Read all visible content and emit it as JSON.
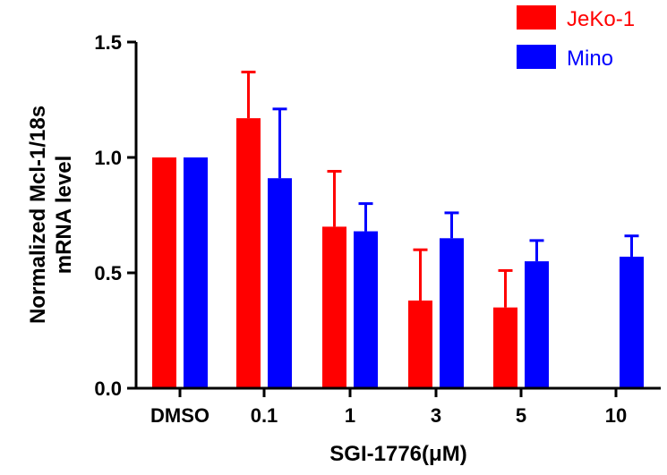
{
  "chart_data": {
    "type": "bar",
    "title": "",
    "xlabel": "SGI-1776(μM)",
    "ylabel_line1": "Normalized Mcl-1/18s",
    "ylabel_line2": "mRNA level",
    "ylim": [
      0,
      1.5
    ],
    "yticks": [
      "0.0",
      "0.5",
      "1.0",
      "1.5"
    ],
    "categories": [
      "DMSO",
      "0.1",
      "1",
      "3",
      "5",
      "10"
    ],
    "legend_position": "top-right",
    "grid": false,
    "series": [
      {
        "name": "JeKo-1",
        "color": "#ff0000",
        "values": [
          1.0,
          1.17,
          0.7,
          0.38,
          0.35,
          null
        ],
        "errors": [
          0,
          0.2,
          0.24,
          0.22,
          0.16,
          null
        ]
      },
      {
        "name": "Mino",
        "color": "#0000ff",
        "values": [
          1.0,
          0.91,
          0.68,
          0.65,
          0.55,
          0.57
        ],
        "errors": [
          0,
          0.3,
          0.12,
          0.11,
          0.09,
          0.09
        ]
      }
    ]
  }
}
